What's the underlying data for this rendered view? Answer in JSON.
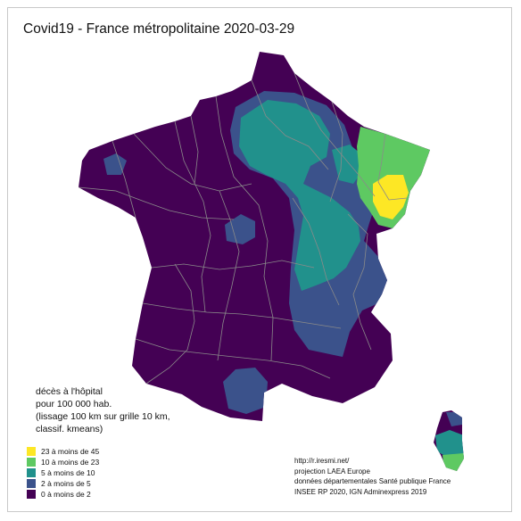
{
  "title": "Covid19 - France métropolitaine 2020-03-29",
  "legend": {
    "heading_lines": [
      "décès à l'hôpital",
      "pour 100 000 hab.",
      "(lissage 100 km sur grille 10 km,",
      " classif. kmeans)"
    ],
    "classes": [
      {
        "label": "23 à moins de 45",
        "color": "#fde725"
      },
      {
        "label": "10 à moins de 23",
        "color": "#5ec962"
      },
      {
        "label": "5 à moins de 10",
        "color": "#21918c"
      },
      {
        "label": "2 à moins de 5",
        "color": "#3b528b"
      },
      {
        "label": "0 à moins de 2",
        "color": "#440154"
      }
    ]
  },
  "credits": [
    "http://r.iresmi.net/",
    "projection LAEA Europe",
    "données départementales Santé publique France",
    "INSEE RP 2020, IGN Adminexpress 2019"
  ],
  "colors": {
    "class_45": "#fde725",
    "class_23": "#5ec962",
    "class_10": "#21918c",
    "class_5": "#3b528b",
    "class_2": "#440154",
    "borders": "#8a8a8a"
  }
}
